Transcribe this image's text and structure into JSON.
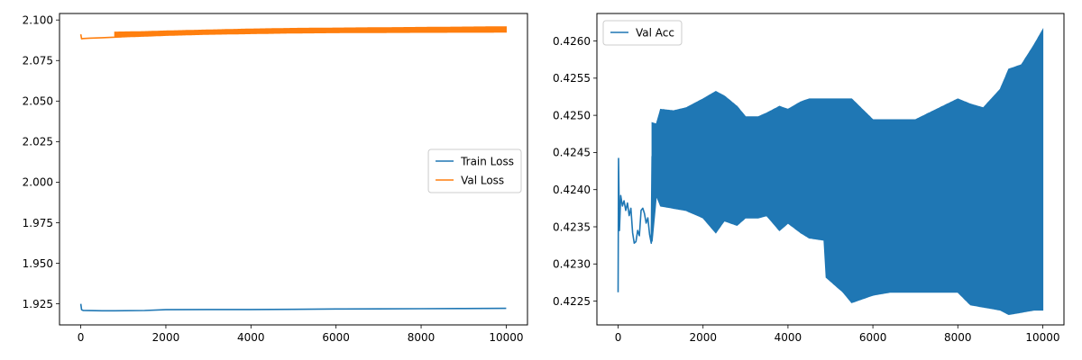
{
  "chart_data": [
    {
      "type": "line",
      "title": "",
      "xlabel": "",
      "ylabel": "",
      "xlim": [
        -500,
        10500
      ],
      "ylim": [
        1.912,
        2.104
      ],
      "xticks": [
        0,
        2000,
        4000,
        6000,
        8000,
        10000
      ],
      "xtick_labels": [
        "0",
        "2000",
        "4000",
        "6000",
        "8000",
        "10000"
      ],
      "yticks": [
        1.925,
        1.95,
        1.975,
        2.0,
        2.025,
        2.05,
        2.075,
        2.1
      ],
      "ytick_labels": [
        "1.925",
        "1.950",
        "1.975",
        "2.000",
        "2.025",
        "2.050",
        "2.075",
        "2.100"
      ],
      "legend_position": "center-right",
      "grid": false,
      "series": [
        {
          "name": "Train Loss",
          "color": "#1f77b4",
          "x": [
            0,
            20,
            60,
            200,
            500,
            800,
            1500,
            2000,
            3000,
            4000,
            5000,
            6000,
            7000,
            8000,
            9000,
            10000
          ],
          "y": [
            1.925,
            1.9213,
            1.9209,
            1.9208,
            1.9207,
            1.9207,
            1.9209,
            1.9214,
            1.9215,
            1.9215,
            1.9216,
            1.9218,
            1.9219,
            1.922,
            1.9221,
            1.9222
          ]
        },
        {
          "name": "Val Loss",
          "color": "#ff7f0e",
          "x": [
            0,
            20,
            60,
            200,
            500,
            800,
            1500,
            2000,
            3000,
            4000,
            5000,
            6000,
            7000,
            8000,
            9000,
            10000
          ],
          "y": [
            2.0912,
            2.0884,
            2.0886,
            2.0888,
            2.0891,
            2.0894,
            2.0908,
            2.0915,
            2.0922,
            2.0928,
            2.0932,
            2.0936,
            2.0939,
            2.0941,
            2.0943,
            2.0945
          ],
          "band_from_x": 800,
          "band_lower": [
            2.0894,
            2.09,
            2.0905,
            2.0912,
            2.0916,
            2.092,
            2.0922,
            2.0923,
            2.0924,
            2.0925
          ],
          "band_upper": [
            2.0925,
            2.0928,
            2.0932,
            2.0938,
            2.0944,
            2.0948,
            2.095,
            2.0952,
            2.0954,
            2.0958
          ],
          "band_x": [
            800,
            1500,
            2000,
            3000,
            4000,
            5000,
            6000,
            7000,
            8000,
            10000
          ]
        }
      ]
    },
    {
      "type": "line",
      "title": "",
      "xlabel": "",
      "ylabel": "",
      "xlim": [
        -500,
        10500
      ],
      "ylim": [
        0.42218,
        0.42637
      ],
      "xticks": [
        0,
        2000,
        4000,
        6000,
        8000,
        10000
      ],
      "xtick_labels": [
        "0",
        "2000",
        "4000",
        "6000",
        "8000",
        "10000"
      ],
      "yticks": [
        0.4225,
        0.423,
        0.4235,
        0.424,
        0.4245,
        0.425,
        0.4255,
        0.426
      ],
      "ytick_labels": [
        "0.4225",
        "0.4230",
        "0.4235",
        "0.4240",
        "0.4245",
        "0.4250",
        "0.4255",
        "0.4260"
      ],
      "legend_position": "upper-left",
      "grid": false,
      "series": [
        {
          "name": "Val Acc",
          "color": "#1f77b4",
          "x": [
            0,
            10,
            30,
            60,
            100,
            140,
            180,
            220,
            260,
            300,
            340,
            380,
            420,
            460,
            500,
            540,
            580,
            620,
            660,
            700,
            740,
            780,
            800
          ],
          "y": [
            0.42262,
            0.42442,
            0.42345,
            0.42392,
            0.42378,
            0.42385,
            0.42372,
            0.42382,
            0.42365,
            0.42375,
            0.42342,
            0.42328,
            0.4233,
            0.42345,
            0.42338,
            0.42372,
            0.42375,
            0.42368,
            0.42355,
            0.42362,
            0.4234,
            0.42328,
            0.42445
          ],
          "band_x": [
            800,
            900,
            1000,
            1300,
            1600,
            2000,
            2300,
            2500,
            2800,
            3000,
            3300,
            3500,
            3800,
            4000,
            4300,
            4500,
            4850,
            4900,
            5300,
            5500,
            6000,
            6400,
            7000,
            7500,
            8000,
            8300,
            8600,
            9000,
            9200,
            9500,
            9800,
            10000
          ],
          "band_lower": [
            0.4233,
            0.42392,
            0.42378,
            0.42375,
            0.42372,
            0.42362,
            0.42342,
            0.42358,
            0.42352,
            0.42362,
            0.42362,
            0.42365,
            0.42345,
            0.42355,
            0.42342,
            0.42335,
            0.42332,
            0.42282,
            0.42262,
            0.42248,
            0.42258,
            0.42262,
            0.42262,
            0.42262,
            0.42262,
            0.42245,
            0.42242,
            0.42238,
            0.42232,
            0.42235,
            0.42238,
            0.42238
          ],
          "band_upper": [
            0.4249,
            0.42488,
            0.42508,
            0.42506,
            0.4251,
            0.42522,
            0.42532,
            0.42526,
            0.42512,
            0.42498,
            0.42498,
            0.42503,
            0.42512,
            0.42508,
            0.42518,
            0.42522,
            0.42522,
            0.42522,
            0.42522,
            0.42522,
            0.42494,
            0.42494,
            0.42494,
            0.42508,
            0.42522,
            0.42515,
            0.4251,
            0.42535,
            0.42562,
            0.42568,
            0.42595,
            0.42615
          ]
        }
      ]
    }
  ]
}
